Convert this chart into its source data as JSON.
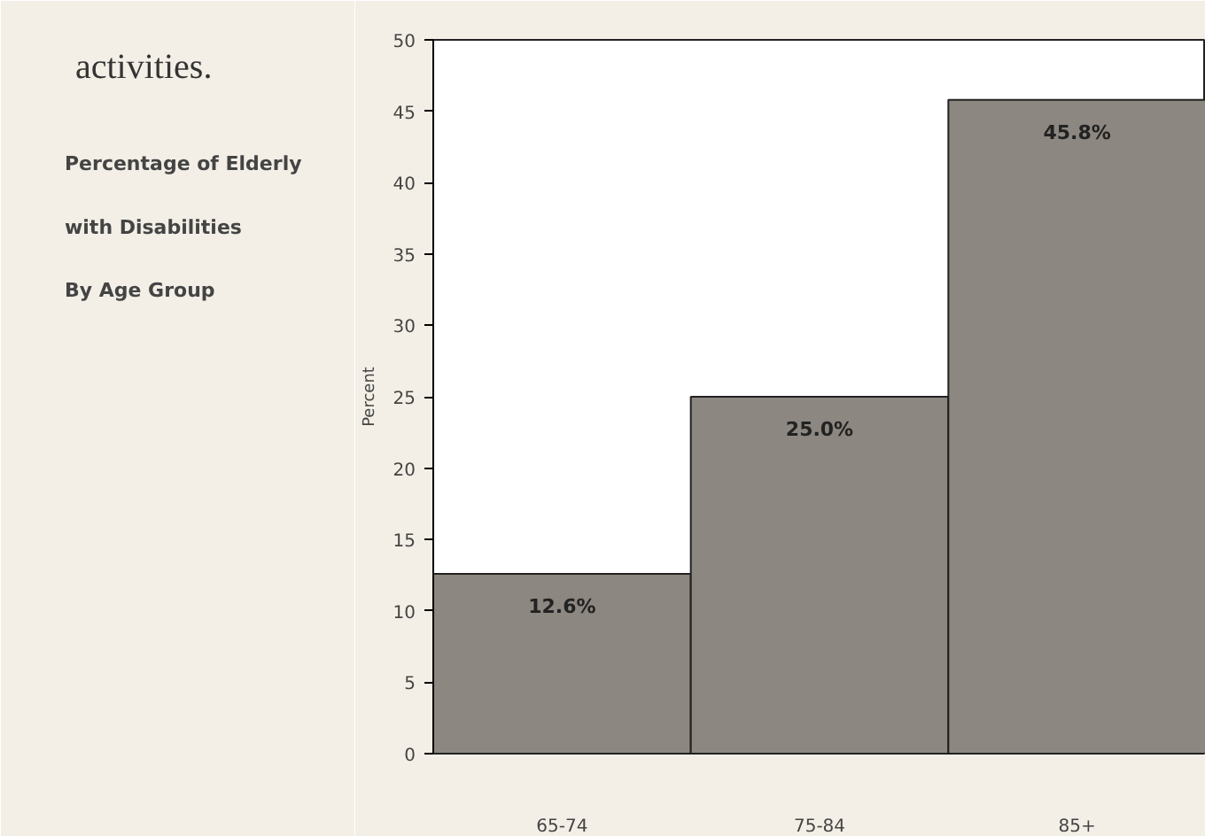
{
  "chart_data": {
    "type": "bar",
    "title": "Percentage of Elderly\nwith Disabilities\nBy Age Group",
    "ylabel": "Percent",
    "categories": [
      "65-74",
      "75-84",
      "85+"
    ],
    "values": [
      12.6,
      25.0,
      45.8
    ],
    "value_labels": [
      "12.6%",
      "25.0%",
      "45.8%"
    ],
    "color": "#8c8780",
    "ylim": [
      0,
      50
    ],
    "yticks": [
      0,
      5,
      10,
      15,
      20,
      25,
      30,
      35,
      40,
      45,
      50
    ],
    "grid": false,
    "annotations": [
      "activities."
    ]
  }
}
